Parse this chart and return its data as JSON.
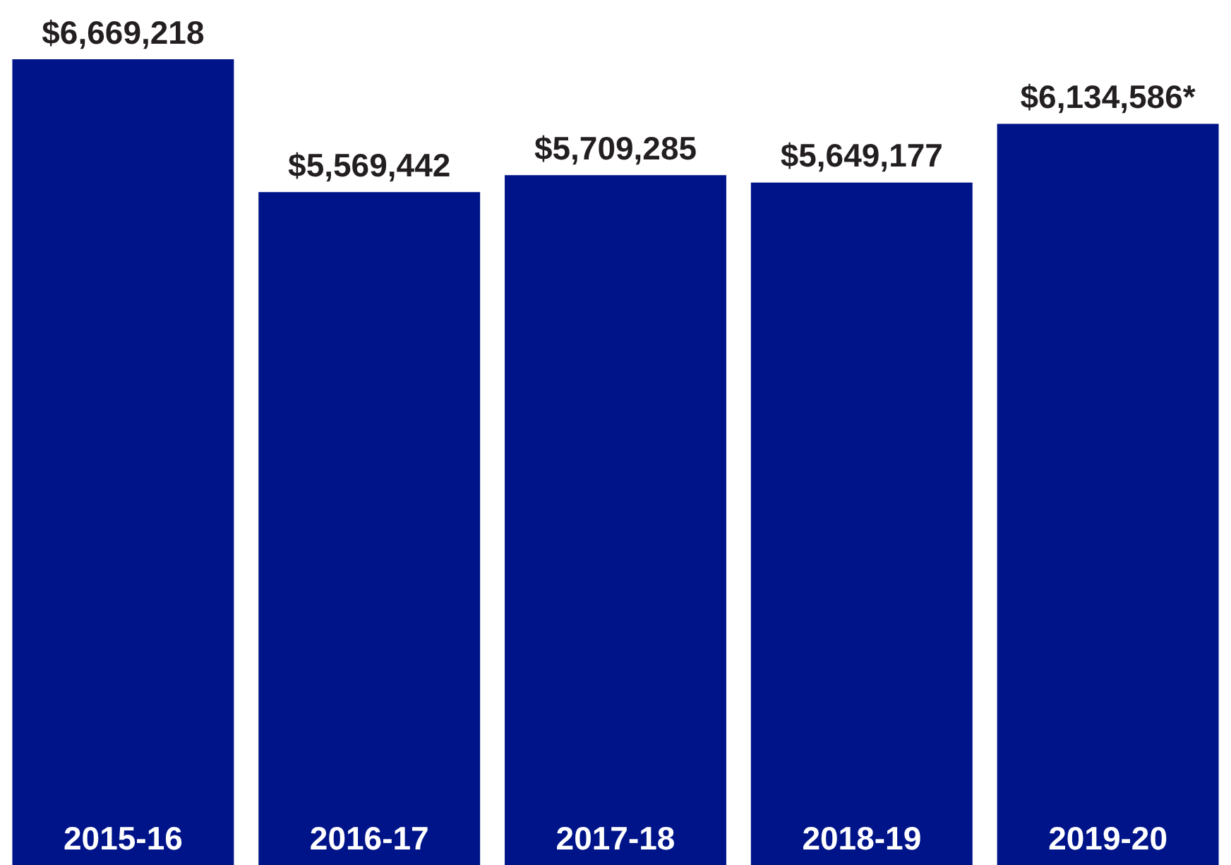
{
  "chart_data": {
    "type": "bar",
    "categories": [
      "2015-16",
      "2016-17",
      "2017-18",
      "2018-19",
      "2019-20"
    ],
    "values": [
      6669218,
      5569442,
      5709285,
      5649177,
      6134586
    ],
    "value_labels": [
      "$6,669,218",
      "$5,569,442",
      "$5,709,285",
      "$5,649,177",
      "$6,134,586*"
    ],
    "color": "#001489"
  }
}
